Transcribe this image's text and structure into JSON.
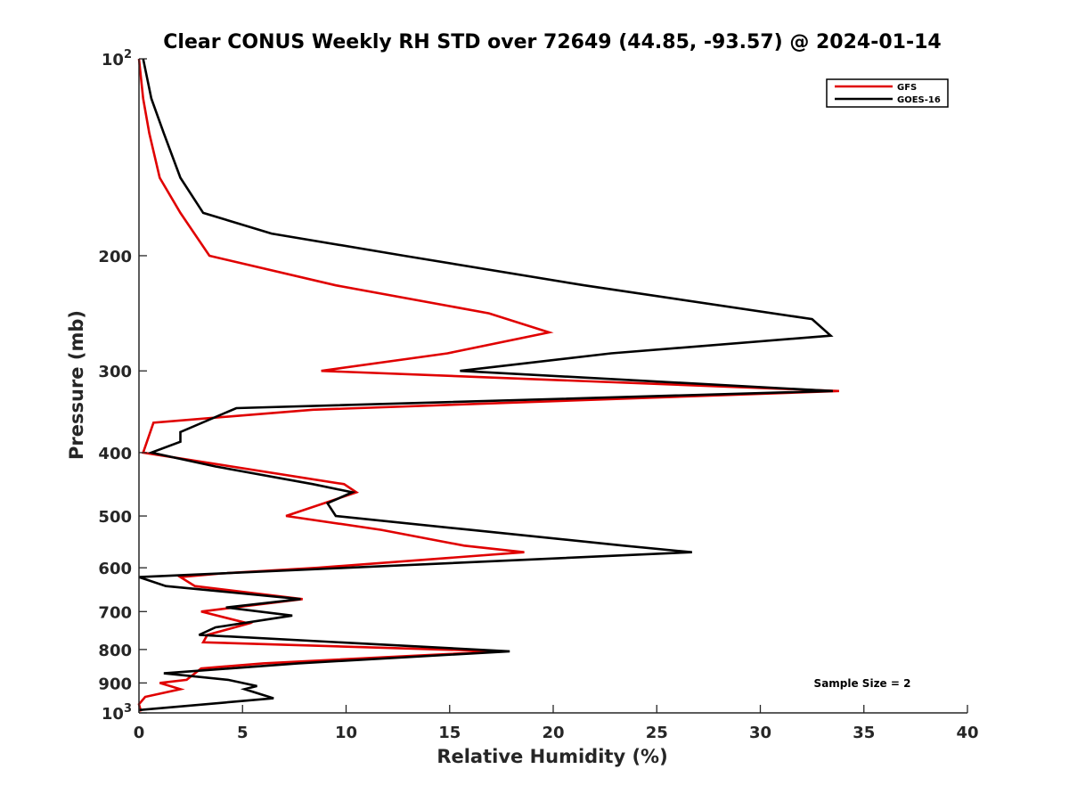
{
  "chart_data": {
    "type": "line",
    "title": "Clear CONUS Weekly RH STD over 72649 (44.85, -93.57) @ 2024-01-14",
    "xlabel": "Relative Humidity (%)",
    "ylabel": "Pressure (mb)",
    "xlim": [
      0,
      40
    ],
    "ylim": [
      100,
      1000
    ],
    "y_scale": "log",
    "y_reversed": true,
    "grid": false,
    "legend_position": "top-right",
    "x_ticks": [
      0,
      5,
      10,
      15,
      20,
      25,
      30,
      35,
      40
    ],
    "x_tick_labels": [
      "0",
      "5",
      "10",
      "15",
      "20",
      "25",
      "30",
      "35",
      "40"
    ],
    "y_ticks": [
      100,
      200,
      300,
      400,
      500,
      600,
      700,
      800,
      900,
      1000
    ],
    "y_tick_labels": [
      "",
      "200",
      "300",
      "400",
      "500",
      "600",
      "700",
      "800",
      "900",
      ""
    ],
    "y_tick_label_10e2": {
      "base": "10",
      "exp": "2"
    },
    "y_tick_label_10e3": {
      "base": "10",
      "exp": "3"
    },
    "annotation": "Sample Size = 2",
    "series": [
      {
        "name": "GFS",
        "color": "#e00000",
        "points": [
          [
            0.0,
            100
          ],
          [
            0.2,
            115
          ],
          [
            0.5,
            130
          ],
          [
            1.0,
            152
          ],
          [
            2.0,
            172
          ],
          [
            3.4,
            200
          ],
          [
            9.5,
            222
          ],
          [
            16.9,
            245
          ],
          [
            19.8,
            262
          ],
          [
            14.9,
            282
          ],
          [
            8.8,
            300
          ],
          [
            33.8,
            322
          ],
          [
            8.4,
            344
          ],
          [
            0.7,
            360
          ],
          [
            0.2,
            400
          ],
          [
            9.9,
            447
          ],
          [
            10.5,
            460
          ],
          [
            7.1,
            500
          ],
          [
            11.7,
            525
          ],
          [
            15.7,
            555
          ],
          [
            18.6,
            568
          ],
          [
            8.6,
            600
          ],
          [
            4.0,
            612
          ],
          [
            2.0,
            620
          ],
          [
            2.7,
            640
          ],
          [
            7.9,
            670
          ],
          [
            3.0,
            700
          ],
          [
            5.3,
            730
          ],
          [
            3.3,
            760
          ],
          [
            3.1,
            780
          ],
          [
            17.5,
            805
          ],
          [
            6.0,
            840
          ],
          [
            3.0,
            855
          ],
          [
            2.3,
            890
          ],
          [
            1.0,
            900
          ],
          [
            2.0,
            920
          ],
          [
            0.3,
            945
          ],
          [
            0.0,
            970
          ],
          [
            0.1,
            995
          ]
        ]
      },
      {
        "name": "GOES-16",
        "color": "#000000",
        "points": [
          [
            0.2,
            100
          ],
          [
            0.6,
            115
          ],
          [
            1.2,
            130
          ],
          [
            2.0,
            152
          ],
          [
            3.1,
            172
          ],
          [
            6.4,
            185
          ],
          [
            12.8,
            200
          ],
          [
            21.5,
            222
          ],
          [
            32.5,
            250
          ],
          [
            33.4,
            265
          ],
          [
            22.8,
            282
          ],
          [
            15.5,
            300
          ],
          [
            33.5,
            322
          ],
          [
            4.7,
            342
          ],
          [
            2.0,
            372
          ],
          [
            2.0,
            385
          ],
          [
            0.6,
            400
          ],
          [
            3.7,
            420
          ],
          [
            8.4,
            447
          ],
          [
            10.3,
            460
          ],
          [
            9.1,
            478
          ],
          [
            9.5,
            500
          ],
          [
            16.0,
            525
          ],
          [
            23.4,
            555
          ],
          [
            26.7,
            568
          ],
          [
            10.0,
            600
          ],
          [
            0.0,
            620
          ],
          [
            1.3,
            640
          ],
          [
            7.8,
            670
          ],
          [
            4.2,
            690
          ],
          [
            7.4,
            710
          ],
          [
            3.7,
            740
          ],
          [
            2.9,
            760
          ],
          [
            17.9,
            805
          ],
          [
            7.7,
            840
          ],
          [
            1.2,
            870
          ],
          [
            4.3,
            890
          ],
          [
            5.7,
            910
          ],
          [
            5.1,
            920
          ],
          [
            6.5,
            950
          ],
          [
            0.0,
            990
          ]
        ]
      }
    ]
  }
}
